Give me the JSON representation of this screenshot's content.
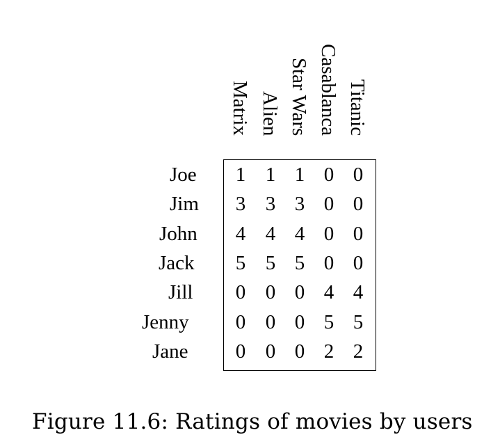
{
  "movies": [
    "Matrix",
    "Alien",
    "Star Wars",
    "Casablanca",
    "Titanic"
  ],
  "users": [
    "Joe",
    "Jim",
    "John",
    "Jack",
    "Jill",
    "Jenny",
    "Jane"
  ],
  "ratings": [
    [
      1,
      1,
      1,
      0,
      0
    ],
    [
      3,
      3,
      3,
      0,
      0
    ],
    [
      4,
      4,
      4,
      0,
      0
    ],
    [
      5,
      5,
      5,
      0,
      0
    ],
    [
      0,
      0,
      0,
      4,
      4
    ],
    [
      0,
      0,
      0,
      5,
      5
    ],
    [
      0,
      0,
      0,
      2,
      2
    ]
  ],
  "caption": "Figure 11.6: Ratings of movies by users"
}
